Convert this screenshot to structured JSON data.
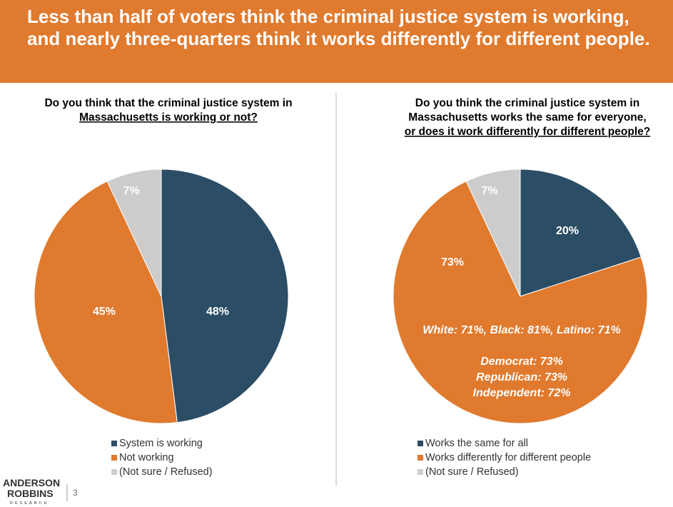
{
  "header": {
    "title": "Less than half of voters think the criminal justice system is working, and nearly three-quarters think it works differently for different people."
  },
  "footer": {
    "logo": [
      "ANDERSON",
      "ROBBINS",
      "RESEARCH"
    ],
    "page": "3"
  },
  "chart_data": [
    {
      "type": "pie",
      "title": [
        "Do you think that the criminal justice system in",
        "Massachusetts is working or not?"
      ],
      "categories": [
        "System is working",
        "Not working",
        "(Not sure / Refused)"
      ],
      "colors": [
        "#2b4d66",
        "#e07a2e",
        "#cccccc"
      ],
      "values": [
        48,
        45,
        7
      ],
      "value_labels": [
        "48%",
        "45%",
        "7%"
      ]
    },
    {
      "type": "pie",
      "title": [
        "Do you think the criminal justice system in",
        "Massachusetts works the same for everyone,",
        "or does it work differently for different people?"
      ],
      "categories": [
        "Works the same for all",
        "Works differently for different people",
        "(Not sure / Refused)"
      ],
      "colors": [
        "#2b4d66",
        "#e07a2e",
        "#cccccc"
      ],
      "values": [
        20,
        73,
        7
      ],
      "value_labels": [
        "20%",
        "73%",
        "7%"
      ],
      "annotations": [
        "White: 71%, Black: 81%, Latino: 71%",
        "Democrat: 73%",
        "Republican: 73%",
        "Independent: 72%"
      ]
    }
  ]
}
